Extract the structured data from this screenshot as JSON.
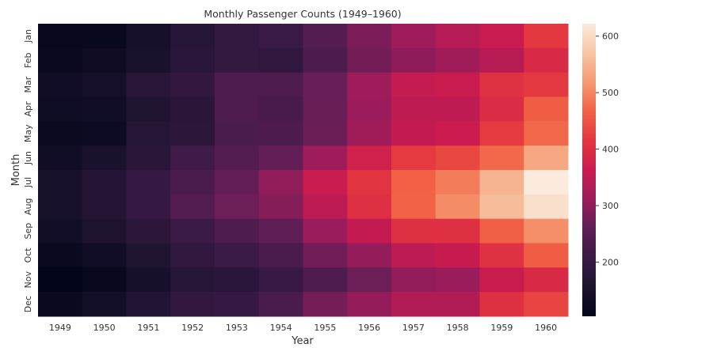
{
  "chart_data": {
    "type": "heatmap",
    "title": "Monthly Passenger Counts (1949–1960)",
    "xlabel": "Year",
    "ylabel": "Month",
    "x": [
      "1949",
      "1950",
      "1951",
      "1952",
      "1953",
      "1954",
      "1955",
      "1956",
      "1957",
      "1958",
      "1959",
      "1960"
    ],
    "y": [
      "Jan",
      "Feb",
      "Mar",
      "Apr",
      "May",
      "Jun",
      "Jul",
      "Aug",
      "Sep",
      "Oct",
      "Nov",
      "Dec"
    ],
    "values": [
      [
        112,
        115,
        145,
        171,
        196,
        204,
        242,
        284,
        315,
        340,
        360,
        417
      ],
      [
        118,
        126,
        150,
        180,
        196,
        188,
        233,
        277,
        301,
        318,
        342,
        391
      ],
      [
        132,
        141,
        178,
        193,
        236,
        235,
        267,
        317,
        356,
        362,
        406,
        419
      ],
      [
        129,
        135,
        163,
        181,
        235,
        227,
        269,
        313,
        348,
        348,
        396,
        461
      ],
      [
        121,
        125,
        172,
        183,
        229,
        234,
        270,
        318,
        355,
        363,
        420,
        472
      ],
      [
        135,
        149,
        178,
        218,
        243,
        264,
        315,
        374,
        422,
        435,
        472,
        535
      ],
      [
        148,
        170,
        199,
        230,
        264,
        302,
        364,
        413,
        465,
        491,
        548,
        622
      ],
      [
        148,
        170,
        199,
        242,
        272,
        293,
        347,
        405,
        467,
        505,
        559,
        606
      ],
      [
        136,
        158,
        184,
        209,
        237,
        259,
        312,
        355,
        404,
        404,
        463,
        508
      ],
      [
        119,
        133,
        162,
        191,
        211,
        229,
        274,
        306,
        347,
        359,
        407,
        461
      ],
      [
        104,
        114,
        146,
        172,
        180,
        203,
        237,
        271,
        305,
        310,
        362,
        390
      ],
      [
        118,
        140,
        166,
        194,
        201,
        229,
        278,
        306,
        336,
        337,
        405,
        432
      ]
    ],
    "colormap": "rocket",
    "colorbar": {
      "range": [
        104,
        622
      ],
      "ticks": [
        200,
        300,
        400,
        500,
        600
      ]
    }
  }
}
